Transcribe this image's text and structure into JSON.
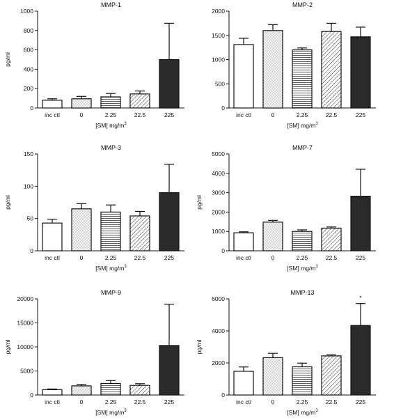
{
  "chart_data": [
    {
      "type": "bar",
      "title": "MMP-1",
      "ylabel": "pg/ml",
      "xlabel": "[SM] mg/m",
      "xlabel_sup": "3",
      "categories": [
        "inc ctl",
        "0",
        "2.25",
        "22.5",
        "225"
      ],
      "values": [
        80,
        95,
        115,
        145,
        500
      ],
      "errors": [
        15,
        25,
        35,
        30,
        375
      ],
      "ylim": [
        0,
        1000
      ],
      "yticks": [
        0,
        200,
        400,
        600,
        800,
        1000
      ],
      "annotations": []
    },
    {
      "type": "bar",
      "title": "MMP-2",
      "ylabel": "",
      "xlabel": "[SM] mg/m",
      "xlabel_sup": "3",
      "categories": [
        "inc ctl",
        "0",
        "2.25",
        "22.5",
        "225"
      ],
      "values": [
        1310,
        1600,
        1200,
        1580,
        1470
      ],
      "errors": [
        130,
        120,
        40,
        170,
        200
      ],
      "ylim": [
        0,
        2000
      ],
      "yticks": [
        0,
        500,
        1000,
        1500,
        2000
      ],
      "annotations": []
    },
    {
      "type": "bar",
      "title": "MMP-3",
      "ylabel": "pg/ml",
      "xlabel": "[SM] mg/m",
      "xlabel_sup": "3",
      "categories": [
        "inc ctl",
        "0",
        "2.25",
        "22.5",
        "225"
      ],
      "values": [
        43,
        65,
        60,
        54,
        90
      ],
      "errors": [
        6,
        8,
        11,
        7,
        44
      ],
      "ylim": [
        0,
        150
      ],
      "yticks": [
        0,
        50,
        100,
        150
      ],
      "annotations": []
    },
    {
      "type": "bar",
      "title": "MMP-7",
      "ylabel": "pg/ml",
      "xlabel": "[SM] mg/m",
      "xlabel_sup": "3",
      "categories": [
        "inc ctl",
        "0",
        "2.25",
        "22.5",
        "225"
      ],
      "values": [
        930,
        1480,
        1000,
        1170,
        2820
      ],
      "errors": [
        50,
        90,
        80,
        60,
        1390
      ],
      "ylim": [
        0,
        5000
      ],
      "yticks": [
        0,
        1000,
        2000,
        3000,
        4000,
        5000
      ],
      "annotations": []
    },
    {
      "type": "bar",
      "title": "MMP-9",
      "ylabel": "pg/ml",
      "xlabel": "[SM] mg/m",
      "xlabel_sup": "3",
      "categories": [
        "inc ctl",
        "0",
        "2.25",
        "22.5",
        "225"
      ],
      "values": [
        1100,
        1900,
        2400,
        2000,
        10300
      ],
      "errors": [
        150,
        300,
        600,
        350,
        8600
      ],
      "ylim": [
        0,
        20000
      ],
      "yticks": [
        0,
        5000,
        10000,
        15000,
        20000
      ],
      "annotations": []
    },
    {
      "type": "bar",
      "title": "MMP-13",
      "ylabel": "pg/ml",
      "xlabel": "[SM] mg/m",
      "xlabel_sup": "3",
      "categories": [
        "inc ctl",
        "0",
        "2.25",
        "22.5",
        "225"
      ],
      "values": [
        1480,
        2330,
        1760,
        2440,
        4340
      ],
      "errors": [
        270,
        270,
        230,
        70,
        1370
      ],
      "ylim": [
        0,
        6000
      ],
      "yticks": [
        0,
        2000,
        4000,
        6000
      ],
      "annotations": [
        {
          "category_index": 4,
          "text": "*"
        }
      ]
    }
  ],
  "bar_fills": [
    "plain-white",
    "dotted",
    "horizontal-lines",
    "diagonal-hatch",
    "solid-dark"
  ],
  "colors": {
    "line": "#111111",
    "dark_bar": "#2a2a2a",
    "dotted_fill": "#f2f2f2",
    "pattern_ink": "#333333"
  }
}
